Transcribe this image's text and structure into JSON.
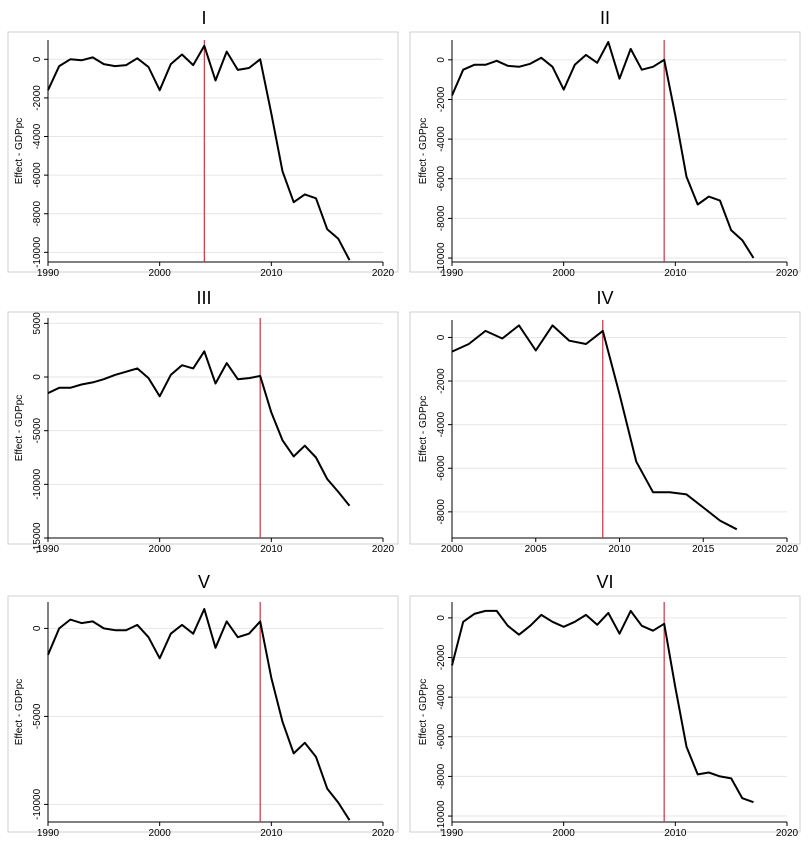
{
  "colors": {
    "line": "#000000",
    "vline": "#cc3344",
    "grid": "#e6e6e6",
    "frame": "#cfcfcf"
  },
  "chart_data": [
    {
      "type": "line",
      "title": "I",
      "ylabel": "Effect - GDPpc",
      "xlim": [
        1990,
        2020
      ],
      "ylim": [
        -10500,
        1000
      ],
      "xticks": [
        1990,
        2000,
        2010,
        2020
      ],
      "yticks": [
        0,
        -2000,
        -4000,
        -6000,
        -8000,
        -10000
      ],
      "vline": 2004,
      "x": [
        1990,
        1991,
        1992,
        1993,
        1994,
        1995,
        1996,
        1997,
        1998,
        1999,
        2000,
        2001,
        2002,
        2003,
        2004,
        2005,
        2006,
        2007,
        2008,
        2009,
        2010,
        2011,
        2012,
        2013,
        2014,
        2015,
        2016,
        2017
      ],
      "y": [
        -1600,
        -350,
        0,
        -50,
        100,
        -250,
        -350,
        -300,
        50,
        -400,
        -1600,
        -250,
        250,
        -300,
        700,
        -1100,
        400,
        -550,
        -450,
        0,
        -2800,
        -5800,
        -7400,
        -7000,
        -7200,
        -8800,
        -9300,
        -10400
      ]
    },
    {
      "type": "line",
      "title": "II",
      "ylabel": "Effect - GDPpc",
      "xlim": [
        1990,
        2020
      ],
      "ylim": [
        -10200,
        1000
      ],
      "xticks": [
        1990,
        2000,
        2010,
        2020
      ],
      "yticks": [
        0,
        -2000,
        -4000,
        -6000,
        -8000,
        -10000
      ],
      "vline": 2009,
      "x": [
        1990,
        1991,
        1992,
        1993,
        1994,
        1995,
        1996,
        1997,
        1998,
        1999,
        2000,
        2001,
        2002,
        2003,
        2004,
        2005,
        2006,
        2007,
        2008,
        2009,
        2010,
        2011,
        2012,
        2013,
        2014,
        2015,
        2016,
        2017
      ],
      "y": [
        -1800,
        -500,
        -250,
        -250,
        -50,
        -300,
        -350,
        -200,
        100,
        -350,
        -1500,
        -250,
        250,
        -150,
        900,
        -950,
        550,
        -500,
        -350,
        0,
        -2800,
        -5900,
        -7300,
        -6900,
        -7100,
        -8600,
        -9100,
        -10000
      ]
    },
    {
      "type": "line",
      "title": "III",
      "ylabel": "Effect - GDPpc",
      "xlim": [
        1990,
        2020
      ],
      "ylim": [
        -15000,
        5500
      ],
      "xticks": [
        1990,
        2000,
        2010,
        2020
      ],
      "yticks": [
        5000,
        0,
        -5000,
        -10000,
        -15000
      ],
      "vline": 2009,
      "x": [
        1990,
        1991,
        1992,
        1993,
        1994,
        1995,
        1996,
        1997,
        1998,
        1999,
        2000,
        2001,
        2002,
        2003,
        2004,
        2005,
        2006,
        2007,
        2008,
        2009,
        2010,
        2011,
        2012,
        2013,
        2014,
        2015,
        2016,
        2017
      ],
      "y": [
        -1500,
        -1000,
        -1000,
        -700,
        -500,
        -200,
        200,
        500,
        800,
        -100,
        -1800,
        200,
        1100,
        800,
        2400,
        -600,
        1300,
        -200,
        -100,
        100,
        -3300,
        -5900,
        -7400,
        -6400,
        -7500,
        -9500,
        -10700,
        -12000
      ]
    },
    {
      "type": "line",
      "title": "IV",
      "ylabel": "Effect - GDPpc",
      "xlim": [
        2000,
        2020
      ],
      "ylim": [
        -9200,
        800
      ],
      "xticks": [
        2000,
        2005,
        2010,
        2015,
        2020
      ],
      "yticks": [
        0,
        -2000,
        -4000,
        -6000,
        -8000
      ],
      "vline": 2009,
      "x": [
        2000,
        2001,
        2002,
        2003,
        2004,
        2005,
        2006,
        2007,
        2008,
        2009,
        2010,
        2011,
        2012,
        2013,
        2014,
        2015,
        2016,
        2017
      ],
      "y": [
        -650,
        -300,
        300,
        -50,
        550,
        -600,
        550,
        -150,
        -300,
        300,
        -2600,
        -5700,
        -7100,
        -7100,
        -7200,
        -7800,
        -8400,
        -8800
      ]
    },
    {
      "type": "line",
      "title": "V",
      "ylabel": "Effect - GDPpc",
      "xlim": [
        1990,
        2020
      ],
      "ylim": [
        -11000,
        1500
      ],
      "xticks": [
        1990,
        2000,
        2010,
        2020
      ],
      "yticks": [
        0,
        -5000,
        -10000
      ],
      "vline": 2009,
      "x": [
        1990,
        1991,
        1992,
        1993,
        1994,
        1995,
        1996,
        1997,
        1998,
        1999,
        2000,
        2001,
        2002,
        2003,
        2004,
        2005,
        2006,
        2007,
        2008,
        2009,
        2010,
        2011,
        2012,
        2013,
        2014,
        2015,
        2016,
        2017
      ],
      "y": [
        -1500,
        0,
        500,
        300,
        400,
        0,
        -100,
        -100,
        200,
        -500,
        -1700,
        -300,
        200,
        -300,
        1100,
        -1100,
        400,
        -500,
        -300,
        400,
        -2800,
        -5300,
        -7100,
        -6500,
        -7300,
        -9100,
        -9900,
        -10900
      ]
    },
    {
      "type": "line",
      "title": "VI",
      "ylabel": "Effect - GDPpc",
      "xlim": [
        1990,
        2020
      ],
      "ylim": [
        -10300,
        800
      ],
      "xticks": [
        1990,
        2000,
        2010,
        2020
      ],
      "yticks": [
        0,
        -2000,
        -4000,
        -6000,
        -8000,
        -10000
      ],
      "vline": 2009,
      "x": [
        1990,
        1991,
        1992,
        1993,
        1994,
        1995,
        1996,
        1997,
        1998,
        1999,
        2000,
        2001,
        2002,
        2003,
        2004,
        2005,
        2006,
        2007,
        2008,
        2009,
        2010,
        2011,
        2012,
        2013,
        2014,
        2015,
        2016,
        2017
      ],
      "y": [
        -2400,
        -200,
        200,
        350,
        350,
        -400,
        -850,
        -400,
        150,
        -200,
        -450,
        -200,
        150,
        -350,
        250,
        -800,
        350,
        -400,
        -650,
        -300,
        -3500,
        -6500,
        -7900,
        -7800,
        -8000,
        -8100,
        -9100,
        -9300
      ]
    }
  ]
}
